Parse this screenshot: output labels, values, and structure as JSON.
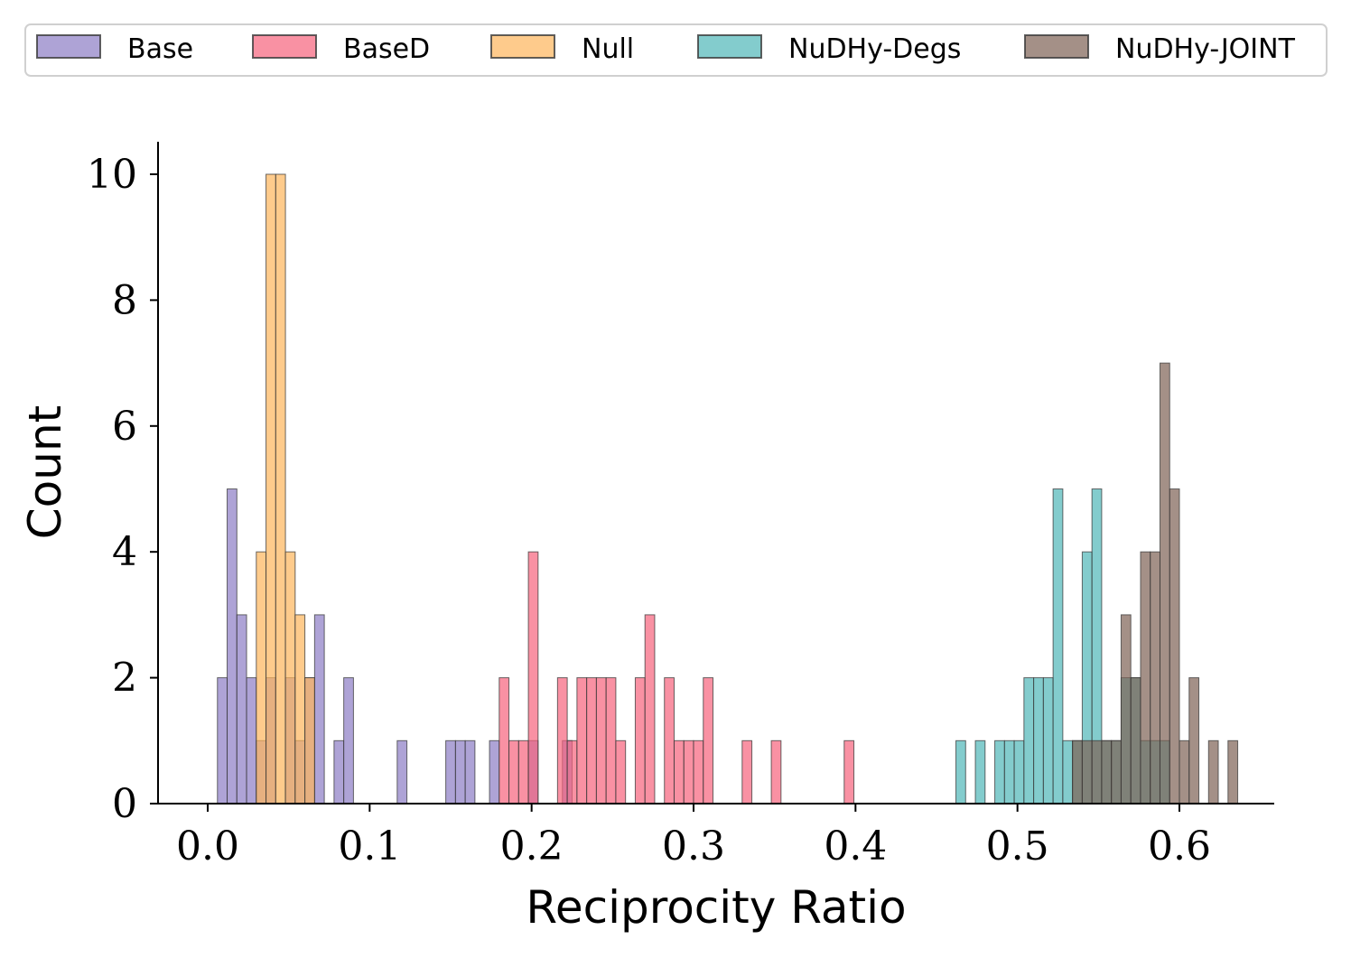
{
  "chart_data": {
    "type": "bar",
    "subtype": "overlaid-histogram",
    "title": "",
    "xlabel": "Reciprocity Ratio",
    "ylabel": "Count",
    "xlim": [
      -0.03,
      0.655
    ],
    "ylim": [
      0,
      10.5
    ],
    "bin_width": 0.006,
    "xticks": [
      0.0,
      0.1,
      0.2,
      0.3,
      0.4,
      0.5,
      0.6
    ],
    "xtick_labels": [
      "0.0",
      "0.1",
      "0.2",
      "0.3",
      "0.4",
      "0.5",
      "0.6"
    ],
    "yticks": [
      0,
      2,
      4,
      6,
      8,
      10
    ],
    "ytick_labels": [
      "0",
      "2",
      "4",
      "6",
      "8",
      "10"
    ],
    "grid": false,
    "legend_position": "top",
    "series": [
      {
        "name": "Base",
        "color": "#8c7cc4",
        "bins": [
          {
            "x": 0.006,
            "count": 2
          },
          {
            "x": 0.012,
            "count": 5
          },
          {
            "x": 0.018,
            "count": 3
          },
          {
            "x": 0.024,
            "count": 2
          },
          {
            "x": 0.03,
            "count": 1
          },
          {
            "x": 0.036,
            "count": 2
          },
          {
            "x": 0.048,
            "count": 2
          },
          {
            "x": 0.054,
            "count": 1
          },
          {
            "x": 0.06,
            "count": 2
          },
          {
            "x": 0.066,
            "count": 3
          },
          {
            "x": 0.078,
            "count": 1
          },
          {
            "x": 0.084,
            "count": 2
          },
          {
            "x": 0.117,
            "count": 1
          },
          {
            "x": 0.147,
            "count": 1
          },
          {
            "x": 0.153,
            "count": 1
          },
          {
            "x": 0.159,
            "count": 1
          },
          {
            "x": 0.174,
            "count": 1
          },
          {
            "x": 0.198,
            "count": 1
          },
          {
            "x": 0.219,
            "count": 1
          }
        ]
      },
      {
        "name": "BaseD",
        "color": "#f7627c",
        "bins": [
          {
            "x": 0.18,
            "count": 2
          },
          {
            "x": 0.186,
            "count": 1
          },
          {
            "x": 0.192,
            "count": 1
          },
          {
            "x": 0.198,
            "count": 4
          },
          {
            "x": 0.216,
            "count": 2
          },
          {
            "x": 0.222,
            "count": 1
          },
          {
            "x": 0.228,
            "count": 2
          },
          {
            "x": 0.234,
            "count": 2
          },
          {
            "x": 0.24,
            "count": 2
          },
          {
            "x": 0.246,
            "count": 2
          },
          {
            "x": 0.252,
            "count": 1
          },
          {
            "x": 0.264,
            "count": 2
          },
          {
            "x": 0.27,
            "count": 3
          },
          {
            "x": 0.282,
            "count": 2
          },
          {
            "x": 0.288,
            "count": 1
          },
          {
            "x": 0.294,
            "count": 1
          },
          {
            "x": 0.3,
            "count": 1
          },
          {
            "x": 0.306,
            "count": 2
          },
          {
            "x": 0.33,
            "count": 1
          },
          {
            "x": 0.348,
            "count": 1
          },
          {
            "x": 0.393,
            "count": 1
          }
        ]
      },
      {
        "name": "Null",
        "color": "#fdb55b",
        "bins": [
          {
            "x": 0.03,
            "count": 4
          },
          {
            "x": 0.036,
            "count": 10
          },
          {
            "x": 0.042,
            "count": 10
          },
          {
            "x": 0.048,
            "count": 4
          },
          {
            "x": 0.054,
            "count": 3
          },
          {
            "x": 0.06,
            "count": 2
          }
        ]
      },
      {
        "name": "NuDHy-Degs",
        "color": "#4fb6b8",
        "bins": [
          {
            "x": 0.462,
            "count": 1
          },
          {
            "x": 0.474,
            "count": 1
          },
          {
            "x": 0.486,
            "count": 1
          },
          {
            "x": 0.492,
            "count": 1
          },
          {
            "x": 0.498,
            "count": 1
          },
          {
            "x": 0.504,
            "count": 2
          },
          {
            "x": 0.51,
            "count": 2
          },
          {
            "x": 0.516,
            "count": 2
          },
          {
            "x": 0.522,
            "count": 5
          },
          {
            "x": 0.528,
            "count": 1
          },
          {
            "x": 0.534,
            "count": 1
          },
          {
            "x": 0.54,
            "count": 4
          },
          {
            "x": 0.546,
            "count": 5
          },
          {
            "x": 0.552,
            "count": 1
          },
          {
            "x": 0.558,
            "count": 1
          },
          {
            "x": 0.564,
            "count": 2
          },
          {
            "x": 0.57,
            "count": 2
          },
          {
            "x": 0.576,
            "count": 1
          },
          {
            "x": 0.582,
            "count": 1
          },
          {
            "x": 0.588,
            "count": 1
          }
        ]
      },
      {
        "name": "NuDHy-JOINT",
        "color": "#7e6154",
        "bins": [
          {
            "x": 0.534,
            "count": 1
          },
          {
            "x": 0.54,
            "count": 1
          },
          {
            "x": 0.546,
            "count": 1
          },
          {
            "x": 0.552,
            "count": 1
          },
          {
            "x": 0.558,
            "count": 1
          },
          {
            "x": 0.564,
            "count": 3
          },
          {
            "x": 0.57,
            "count": 2
          },
          {
            "x": 0.576,
            "count": 4
          },
          {
            "x": 0.582,
            "count": 4
          },
          {
            "x": 0.588,
            "count": 7
          },
          {
            "x": 0.594,
            "count": 5
          },
          {
            "x": 0.6,
            "count": 1
          },
          {
            "x": 0.606,
            "count": 2
          },
          {
            "x": 0.618,
            "count": 1
          },
          {
            "x": 0.63,
            "count": 1
          }
        ]
      }
    ]
  }
}
